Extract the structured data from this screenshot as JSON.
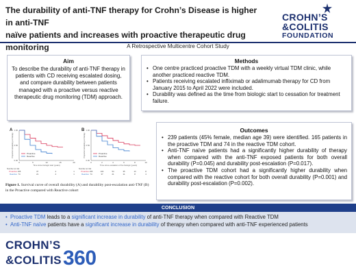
{
  "header": {
    "title_line1": "The durability of anti-TNF therapy for Crohn’s Disease is higher in anti-TNF",
    "title_line2": "naïve patients and increases with proactive therapeutic drug monitoring",
    "subtitle": "A Retrospective Multicentre Cohort Study"
  },
  "logo": {
    "line1": "CROHN’S",
    "line2": "&COLITIS",
    "line3": "FOUNDATION"
  },
  "aim": {
    "heading": "Aim",
    "text": "To describe the durability of anti-TNF therapy in patients with CD receiving escalated dosing, and compare durability between patients managed with a proactive versus reactive therapeutic drug monitoring (TDM) approach."
  },
  "methods": {
    "heading": "Methods",
    "items": [
      "One centre practiced proactive TDM with a weekly virtual TDM clinic, while another practiced reactive TDM.",
      "Patients receiving escalated infliximab or adalimumab therapy for CD from January 2015 to April 2022 were included.",
      "Durability was defined as the time from biologic start to cessation for treatment failure."
    ]
  },
  "outcomes": {
    "heading": "Outcomes",
    "items": [
      "239 patients (45% female, median age 39) were identified. 165 patients in the proactive TDM and 74 in the reactive TDM cohort.",
      "Anti-TNF naïve patients had a significantly higher durability of therapy when compared with the anti-TNF exposed patients for both overall durability (P=0.045) and durability post-escalation (P=0.017).",
      "The proactive TDM cohort had a significantly higher durability when compared with the reactive cohort for both overall durability (P=0.001) and durability post-escalation (P=0.002)."
    ]
  },
  "figure": {
    "caption_label": "Figure 1.",
    "caption_text": " Survival curve of overall durability (A) and durability post-escalation anti-TNF (B) in the Proactive compared with Reactive cohort"
  },
  "chart_data": [
    {
      "type": "line",
      "panel_label": "A",
      "xlabel": "Time since biologic start (years)",
      "ylabel": "Proportion remaining on therapy",
      "x_ticks": [
        0,
        5,
        10,
        15,
        20
      ],
      "ylim": [
        0,
        1
      ],
      "series": [
        {
          "name": "Proactive",
          "color": "#d9385a",
          "x": [
            0,
            2,
            4,
            6,
            8,
            10,
            12,
            14,
            16
          ],
          "y": [
            1.0,
            0.86,
            0.74,
            0.64,
            0.56,
            0.5,
            0.46,
            0.44,
            0.44
          ]
        },
        {
          "name": "Reactive",
          "color": "#3e7fcf",
          "x": [
            0,
            2,
            4,
            6,
            8,
            10,
            12
          ],
          "y": [
            1.0,
            0.7,
            0.5,
            0.36,
            0.28,
            0.24,
            0.22
          ]
        }
      ],
      "risk_table": {
        "label": "Number at risk",
        "rows": [
          {
            "name": "Proactive",
            "values": [
              "165",
              "37",
              "4",
              "1"
            ]
          },
          {
            "name": "Reactive",
            "values": [
              "74",
              "21",
              "4",
              "1"
            ]
          }
        ]
      }
    },
    {
      "type": "line",
      "panel_label": "B",
      "xlabel": "Time since escalation of the biologic (years)",
      "ylabel": "Proportion remaining on therapy",
      "x_ticks": [
        0,
        2,
        4,
        6,
        8,
        10
      ],
      "ylim": [
        0,
        1
      ],
      "series": [
        {
          "name": "Proactive",
          "color": "#d9385a",
          "x": [
            0,
            1,
            2,
            3,
            4,
            5,
            6,
            7,
            8,
            9
          ],
          "y": [
            1.0,
            0.9,
            0.82,
            0.74,
            0.66,
            0.6,
            0.55,
            0.52,
            0.5,
            0.5
          ]
        },
        {
          "name": "Reactive",
          "color": "#3e7fcf",
          "x": [
            0,
            1,
            2,
            3,
            4,
            5,
            6,
            7
          ],
          "y": [
            1.0,
            0.8,
            0.64,
            0.52,
            0.42,
            0.36,
            0.32,
            0.3
          ]
        }
      ],
      "risk_table": {
        "label": "Number at risk",
        "rows": [
          {
            "name": "Proactive",
            "values": [
              "165",
              "104",
              "54",
              "35",
              "13",
              "8"
            ]
          },
          {
            "name": "Reactive",
            "values": [
              "74",
              "37",
              "21",
              "11",
              "8",
              "4"
            ]
          }
        ]
      }
    }
  ],
  "conclusion": {
    "heading": "CONCLUSION",
    "line1": {
      "a": "Proactive TDM",
      "b": " leads to a ",
      "c": "significant increase in durability",
      "d": " of anti-TNF therapy when compared with Reactive TDM"
    },
    "line2": {
      "a": "Anti-TNF naïve",
      "b": " patients have a ",
      "c": "significant increase in durability",
      "d": " of therapy when compared with anti-TNF experienced patients"
    }
  },
  "footer_logo": {
    "line1": "CROHN’S",
    "line2": "&COLITIS",
    "number": "360"
  }
}
